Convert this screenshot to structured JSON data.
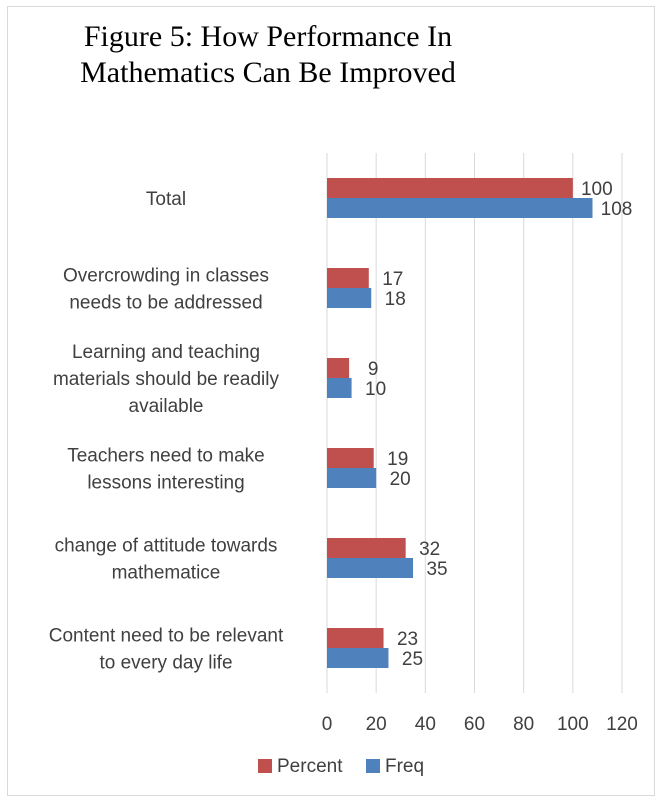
{
  "chart_data": {
    "type": "bar",
    "orientation": "horizontal",
    "title": "Figure 5: How Performance In\nMathematics Can Be Improved",
    "categories": [
      "Total",
      "Overcrowding in classes needs to be addressed",
      "Learning and teaching materials should be readily available",
      "Teachers need to make lessons interesting",
      "change of attitude towards mathematice",
      "Content need to be relevant to every day life"
    ],
    "category_lines": [
      [
        "Total"
      ],
      [
        "Overcrowding in classes",
        "needs to be addressed"
      ],
      [
        "Learning and teaching",
        "materials should be readily",
        "available"
      ],
      [
        "Teachers need to make",
        "lessons interesting"
      ],
      [
        "change of attitude towards",
        "mathematice"
      ],
      [
        "Content need to be relevant",
        "to every day life"
      ]
    ],
    "series": [
      {
        "name": "Percent",
        "color": "#c0504d",
        "values": [
          100,
          17,
          9,
          19,
          32,
          23
        ]
      },
      {
        "name": "Freq",
        "color": "#4f81bd",
        "values": [
          108,
          18,
          10,
          20,
          35,
          25
        ]
      }
    ],
    "xlim": [
      0,
      120
    ],
    "xticks": [
      0,
      20,
      40,
      60,
      80,
      100,
      120
    ],
    "grid": "vertical",
    "legend": "bottom",
    "colors": {
      "gridline": "#d9d9d9",
      "text": "#404040"
    }
  }
}
